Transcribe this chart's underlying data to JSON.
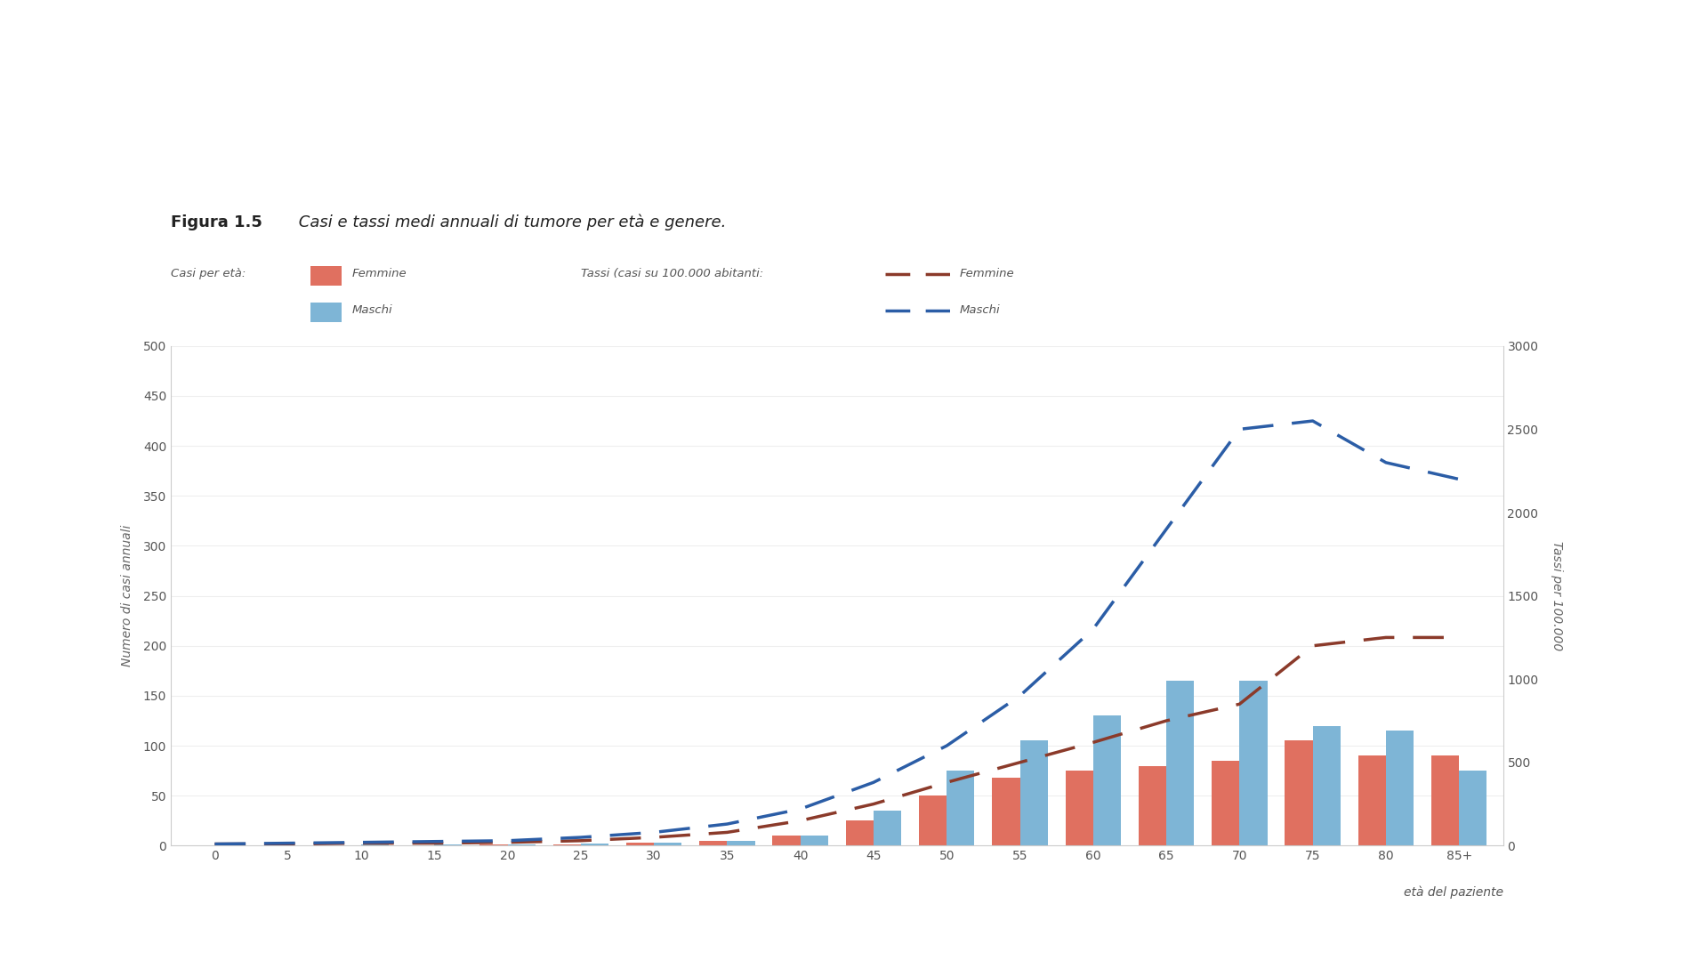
{
  "title_bold": "Figura 1.5",
  "title_italic": " Casi e tassi medi annuali di tumore per età e genere.",
  "age_labels": [
    "0",
    "5",
    "10",
    "15",
    "20",
    "25",
    "30",
    "35",
    "40",
    "45",
    "50",
    "55",
    "60",
    "65",
    "70",
    "75",
    "80",
    "85+"
  ],
  "femmine_cases": [
    0.5,
    0.5,
    0.5,
    0.5,
    1,
    1,
    3,
    5,
    10,
    25,
    50,
    68,
    75,
    80,
    85,
    105,
    90,
    90
  ],
  "maschi_cases": [
    0.5,
    0.5,
    1,
    1,
    1,
    2,
    3,
    5,
    10,
    35,
    75,
    105,
    130,
    165,
    165,
    120,
    115,
    75
  ],
  "femmine_rates": [
    10,
    10,
    15,
    15,
    20,
    30,
    50,
    80,
    150,
    250,
    380,
    500,
    620,
    750,
    850,
    1200,
    1250,
    1250
  ],
  "maschi_rates": [
    10,
    15,
    20,
    25,
    30,
    50,
    80,
    130,
    220,
    380,
    600,
    900,
    1300,
    1900,
    2500,
    2550,
    2300,
    2200
  ],
  "bar_color_femmine": "#E07060",
  "bar_color_maschi": "#7EB5D6",
  "line_color_femmine": "#8B3A2A",
  "line_color_maschi": "#2B5DA6",
  "ylabel_left": "Numero di casi annuali",
  "ylabel_right": "Tassi per 100.000",
  "xlabel": "età del paziente",
  "ylim_left": [
    0,
    500
  ],
  "ylim_right": [
    0,
    3000
  ],
  "yticks_left": [
    0,
    50,
    100,
    150,
    200,
    250,
    300,
    350,
    400,
    450,
    500
  ],
  "yticks_right": [
    0,
    500,
    1000,
    1500,
    2000,
    2500,
    3000
  ],
  "legend_casi_label": "Casi per età:",
  "legend_tassi_label": "Tassi (casi su 100.000 abitanti:",
  "legend_femmine": "Femmine",
  "legend_maschi": "Maschi",
  "background_color": "#FFFFFF",
  "bar_width": 0.38
}
